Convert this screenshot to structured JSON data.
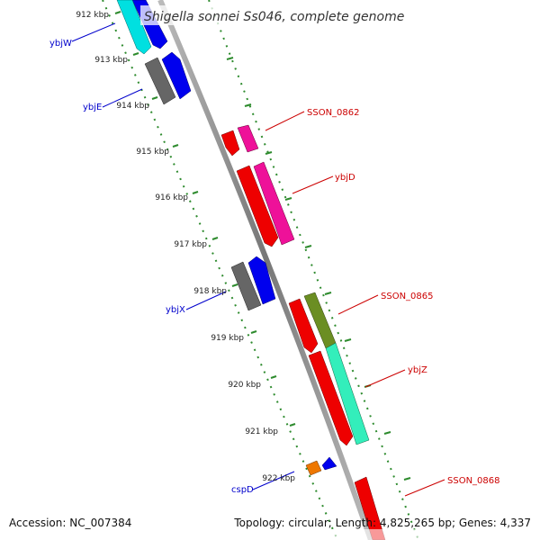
{
  "title": "Shigella sonnei Ss046, complete genome",
  "ticks": [
    "912 kbp",
    "913 kbp",
    "914 kbp",
    "915 kbp",
    "916 kbp",
    "917 kbp",
    "918 kbp",
    "919 kbp",
    "920 kbp",
    "921 kbp",
    "922 kbp"
  ],
  "labels": {
    "ybjW": "ybjW",
    "ybjE": "ybjE",
    "SSON_0862": "SSON_0862",
    "ybjD": "ybjD",
    "SSON_0865": "SSON_0865",
    "ybjX": "ybjX",
    "ybjZ": "ybjZ",
    "cspD": "cspD",
    "SSON_0868": "SSON_0868"
  },
  "colors": {
    "forward_label": "#0000cc",
    "reverse_label": "#cc0000",
    "backbone": "#8c8c8c",
    "ruler": "#2e8b2e",
    "red": "#ee0000",
    "magenta": "#ee1199",
    "blue": "#0000ee",
    "gray": "#666666",
    "cyan": "#00e0e0",
    "olive": "#6b8e23",
    "aquamarine": "#33eebb",
    "orange": "#ee7700"
  },
  "footer": {
    "accession": "Accession: NC_007384",
    "topology": "Topology: circular; Length: 4,825,265 bp; Genes: 4,337"
  }
}
